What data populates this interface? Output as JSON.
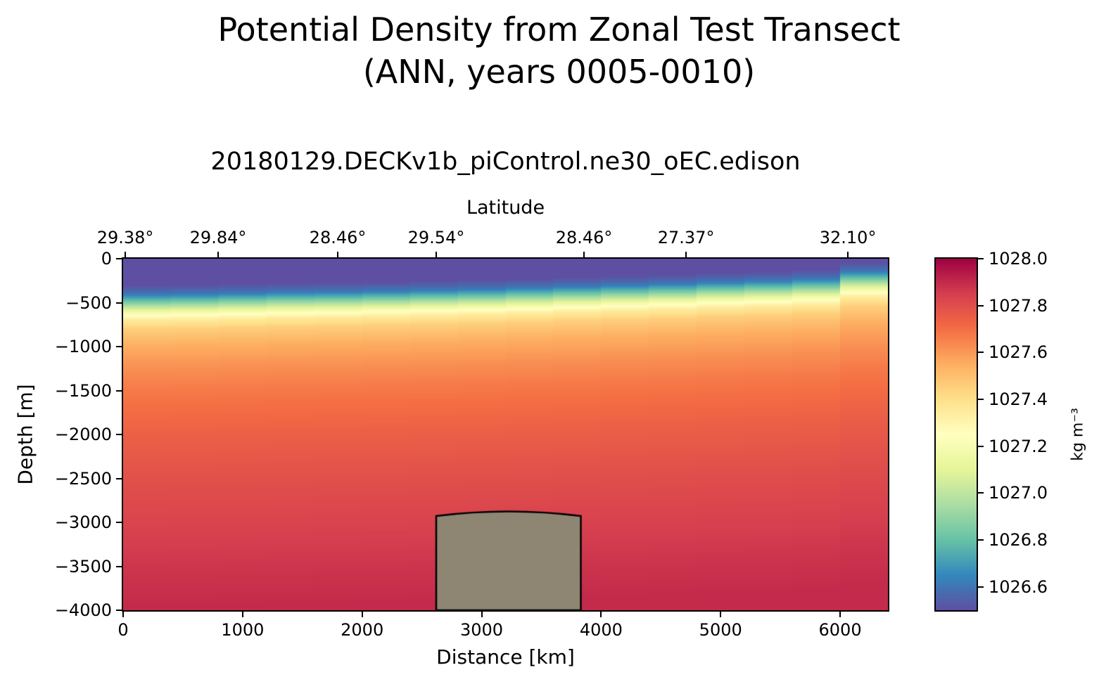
{
  "figure": {
    "title_line1": "Potential Density from Zonal Test Transect",
    "title_line2": "(ANN, years 0005-0010)",
    "subtitle": "20180129.DECKv1b_piControl.ne30_oEC.edison",
    "background": "#ffffff"
  },
  "chart_data": {
    "type": "heatmap",
    "title": "Potential Density from Zonal Test Transect (ANN, years 0005-0010)",
    "subtitle": "20180129.DECKv1b_piControl.ne30_oEC.edison",
    "xlabel": "Distance [km]",
    "ylabel": "Depth [m]",
    "top_axis_label": "Latitude",
    "colorbar_label": "kg m⁻³",
    "grid": false,
    "legend": "none",
    "x_range_km": [
      0,
      6400
    ],
    "depth_range_m": [
      0,
      -4000
    ],
    "value_range_kg_m3": [
      1026.5,
      1028.0
    ],
    "x_ticks": [
      {
        "v": 0,
        "label": "0"
      },
      {
        "v": 1000,
        "label": "1000"
      },
      {
        "v": 2000,
        "label": "2000"
      },
      {
        "v": 3000,
        "label": "3000"
      },
      {
        "v": 4000,
        "label": "4000"
      },
      {
        "v": 5000,
        "label": "5000"
      },
      {
        "v": 6000,
        "label": "6000"
      }
    ],
    "y_ticks": [
      {
        "v": 0,
        "label": "0"
      },
      {
        "v": -500,
        "label": "−500"
      },
      {
        "v": -1000,
        "label": "−1000"
      },
      {
        "v": -1500,
        "label": "−1500"
      },
      {
        "v": -2000,
        "label": "−2000"
      },
      {
        "v": -2500,
        "label": "−2500"
      },
      {
        "v": -3000,
        "label": "−3000"
      },
      {
        "v": -3500,
        "label": "−3500"
      },
      {
        "v": -4000,
        "label": "−4000"
      }
    ],
    "latitude_ticks": [
      {
        "x_km": 18,
        "label": "29.38°"
      },
      {
        "x_km": 795,
        "label": "29.84°"
      },
      {
        "x_km": 1796,
        "label": "28.46°"
      },
      {
        "x_km": 2620,
        "label": "29.54°"
      },
      {
        "x_km": 3857,
        "label": "28.46°"
      },
      {
        "x_km": 4711,
        "label": "27.37°"
      },
      {
        "x_km": 6065,
        "label": "32.10°"
      }
    ],
    "colorbar_ticks": [
      {
        "v": 1028.0,
        "label": "1028.0"
      },
      {
        "v": 1027.8,
        "label": "1027.8"
      },
      {
        "v": 1027.6,
        "label": "1027.6"
      },
      {
        "v": 1027.4,
        "label": "1027.4"
      },
      {
        "v": 1027.2,
        "label": "1027.2"
      },
      {
        "v": 1027.0,
        "label": "1027.0"
      },
      {
        "v": 1026.8,
        "label": "1026.8"
      },
      {
        "v": 1026.6,
        "label": "1026.6"
      }
    ],
    "colormap_spectral_r": [
      {
        "t": 0.0,
        "c": "#5e4fa2"
      },
      {
        "t": 0.1,
        "c": "#3288bd"
      },
      {
        "t": 0.2,
        "c": "#66c2a5"
      },
      {
        "t": 0.3,
        "c": "#abdda4"
      },
      {
        "t": 0.4,
        "c": "#e6f598"
      },
      {
        "t": 0.5,
        "c": "#ffffbf"
      },
      {
        "t": 0.6,
        "c": "#fee08b"
      },
      {
        "t": 0.7,
        "c": "#fdae61"
      },
      {
        "t": 0.8,
        "c": "#f46d43"
      },
      {
        "t": 0.9,
        "c": "#d53e4f"
      },
      {
        "t": 1.0,
        "c": "#9e0142"
      }
    ],
    "base_density_profile": {
      "depths_m": [
        0,
        -150,
        -300,
        -400,
        -480,
        -550,
        -620,
        -700,
        -800,
        -1000,
        -1250,
        -1500,
        -2000,
        -2500,
        -3000,
        -3500,
        -4000
      ],
      "values_kg_m3": [
        1026.44,
        1026.45,
        1026.5,
        1026.6,
        1026.8,
        1027.0,
        1027.2,
        1027.35,
        1027.45,
        1027.55,
        1027.62,
        1027.67,
        1027.74,
        1027.79,
        1027.83,
        1027.87,
        1027.9
      ]
    },
    "stations": [
      {
        "x0_km": 0,
        "x1_km": 400,
        "pycnocline_lift_m": 0
      },
      {
        "x0_km": 400,
        "x1_km": 800,
        "pycnocline_lift_m": 5
      },
      {
        "x0_km": 800,
        "x1_km": 1200,
        "pycnocline_lift_m": 15
      },
      {
        "x0_km": 1200,
        "x1_km": 1600,
        "pycnocline_lift_m": 25
      },
      {
        "x0_km": 1600,
        "x1_km": 2000,
        "pycnocline_lift_m": 30
      },
      {
        "x0_km": 2000,
        "x1_km": 2400,
        "pycnocline_lift_m": 40
      },
      {
        "x0_km": 2400,
        "x1_km": 2800,
        "pycnocline_lift_m": 50
      },
      {
        "x0_km": 2800,
        "x1_km": 3200,
        "pycnocline_lift_m": 60
      },
      {
        "x0_km": 3200,
        "x1_km": 3600,
        "pycnocline_lift_m": 75
      },
      {
        "x0_km": 3600,
        "x1_km": 4000,
        "pycnocline_lift_m": 90
      },
      {
        "x0_km": 4000,
        "x1_km": 4400,
        "pycnocline_lift_m": 105
      },
      {
        "x0_km": 4400,
        "x1_km": 4800,
        "pycnocline_lift_m": 120
      },
      {
        "x0_km": 4800,
        "x1_km": 5200,
        "pycnocline_lift_m": 140
      },
      {
        "x0_km": 5200,
        "x1_km": 5600,
        "pycnocline_lift_m": 155
      },
      {
        "x0_km": 5600,
        "x1_km": 6000,
        "pycnocline_lift_m": 175
      },
      {
        "x0_km": 6000,
        "x1_km": 6400,
        "pycnocline_lift_m": 260
      }
    ],
    "bathymetry": {
      "x0_km": 2620,
      "x1_km": 3830,
      "top_depth_m": -2880,
      "fill": "#8e8673",
      "edge": "#000000"
    }
  }
}
